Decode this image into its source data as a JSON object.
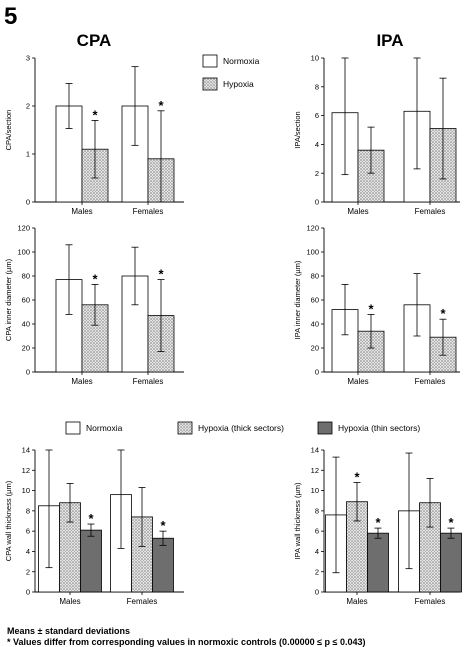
{
  "figure": {
    "panel_number": "5",
    "col_titles": [
      "CPA",
      "IPA"
    ],
    "legend_top": [
      "Normoxia",
      "Hypoxia"
    ],
    "legend_bottom": [
      "Normoxia",
      "Hypoxia (thick sectors)",
      "Hypoxia (thin sectors)"
    ],
    "footnote_1": "Means ± standard deviations",
    "footnote_2": "* Values differ from corresponding values in normoxic controls (0.00000 ≤ p ≤ 0.043)"
  },
  "colors": {
    "normoxia": "#ffffff",
    "hypoxia": "#d0d0d0",
    "thin_sectors": "#6e6e6e",
    "stroke": "#000000"
  },
  "chart_data": [
    {
      "type": "bar",
      "ylabel": "CPA/section",
      "ylim": [
        0,
        3
      ],
      "yticks": [
        "0",
        "1",
        "2",
        "3"
      ],
      "categories": [
        "Males",
        "Females"
      ],
      "series": [
        {
          "name": "Normoxia",
          "values": [
            2.0,
            2.0
          ],
          "sd": [
            0.47,
            0.82
          ]
        },
        {
          "name": "Hypoxia",
          "values": [
            1.1,
            0.9
          ],
          "sd": [
            0.6,
            1.0
          ]
        }
      ],
      "significant": [
        [
          false,
          false
        ],
        [
          true,
          true
        ]
      ]
    },
    {
      "type": "bar",
      "ylabel": "IPA/section",
      "ylim": [
        0,
        10
      ],
      "yticks": [
        "0",
        "2",
        "4",
        "6",
        "8",
        "10"
      ],
      "categories": [
        "Males",
        "Females"
      ],
      "series": [
        {
          "name": "Normoxia",
          "values": [
            6.2,
            6.3
          ],
          "sd": [
            4.3,
            4.0
          ]
        },
        {
          "name": "Hypoxia",
          "values": [
            3.6,
            5.1
          ],
          "sd": [
            1.6,
            3.5
          ]
        }
      ],
      "significant": [
        [
          false,
          false
        ],
        [
          false,
          false
        ]
      ]
    },
    {
      "type": "bar",
      "ylabel": "CPA inner diameter (µm)",
      "ylim": [
        0,
        120
      ],
      "yticks": [
        "0",
        "20",
        "40",
        "60",
        "80",
        "100",
        "120"
      ],
      "categories": [
        "Males",
        "Females"
      ],
      "series": [
        {
          "name": "Normoxia",
          "values": [
            77,
            80
          ],
          "sd": [
            29,
            24
          ]
        },
        {
          "name": "Hypoxia",
          "values": [
            56,
            47
          ],
          "sd": [
            17,
            30
          ]
        }
      ],
      "significant": [
        [
          false,
          false
        ],
        [
          true,
          true
        ]
      ]
    },
    {
      "type": "bar",
      "ylabel": "IPA inner diameter (µm)",
      "ylim": [
        0,
        120
      ],
      "yticks": [
        "0",
        "20",
        "40",
        "60",
        "80",
        "100",
        "120"
      ],
      "categories": [
        "Males",
        "Females"
      ],
      "series": [
        {
          "name": "Normoxia",
          "values": [
            52,
            56
          ],
          "sd": [
            21,
            26
          ]
        },
        {
          "name": "Hypoxia",
          "values": [
            34,
            29
          ],
          "sd": [
            14,
            15
          ]
        }
      ],
      "significant": [
        [
          false,
          false
        ],
        [
          true,
          true
        ]
      ]
    },
    {
      "type": "bar",
      "ylabel": "CPA wall thickness (µm)",
      "ylim": [
        0,
        14
      ],
      "yticks": [
        "0",
        "2",
        "4",
        "6",
        "8",
        "10",
        "12",
        "14"
      ],
      "categories": [
        "Males",
        "Females"
      ],
      "series": [
        {
          "name": "Normoxia",
          "values": [
            8.5,
            9.6
          ],
          "sd": [
            6.1,
            5.3
          ]
        },
        {
          "name": "Hypoxia (thick sectors)",
          "values": [
            8.8,
            7.4
          ],
          "sd": [
            1.9,
            2.9
          ]
        },
        {
          "name": "Hypoxia (thin sectors)",
          "values": [
            6.1,
            5.3
          ],
          "sd": [
            0.6,
            0.7
          ]
        }
      ],
      "significant": [
        [
          false,
          false
        ],
        [
          false,
          false
        ],
        [
          true,
          true
        ]
      ]
    },
    {
      "type": "bar",
      "ylabel": "IPA wall thickness (µm)",
      "ylim": [
        0,
        14
      ],
      "yticks": [
        "0",
        "2",
        "4",
        "6",
        "8",
        "10",
        "12",
        "14"
      ],
      "categories": [
        "Males",
        "Females"
      ],
      "series": [
        {
          "name": "Normoxia",
          "values": [
            7.6,
            8.0
          ],
          "sd": [
            5.7,
            5.7
          ]
        },
        {
          "name": "Hypoxia (thick sectors)",
          "values": [
            8.9,
            8.8
          ],
          "sd": [
            1.9,
            2.4
          ]
        },
        {
          "name": "Hypoxia (thin sectors)",
          "values": [
            5.8,
            5.8
          ],
          "sd": [
            0.5,
            0.5
          ]
        }
      ],
      "significant": [
        [
          false,
          false
        ],
        [
          true,
          false
        ],
        [
          true,
          true
        ]
      ]
    }
  ]
}
